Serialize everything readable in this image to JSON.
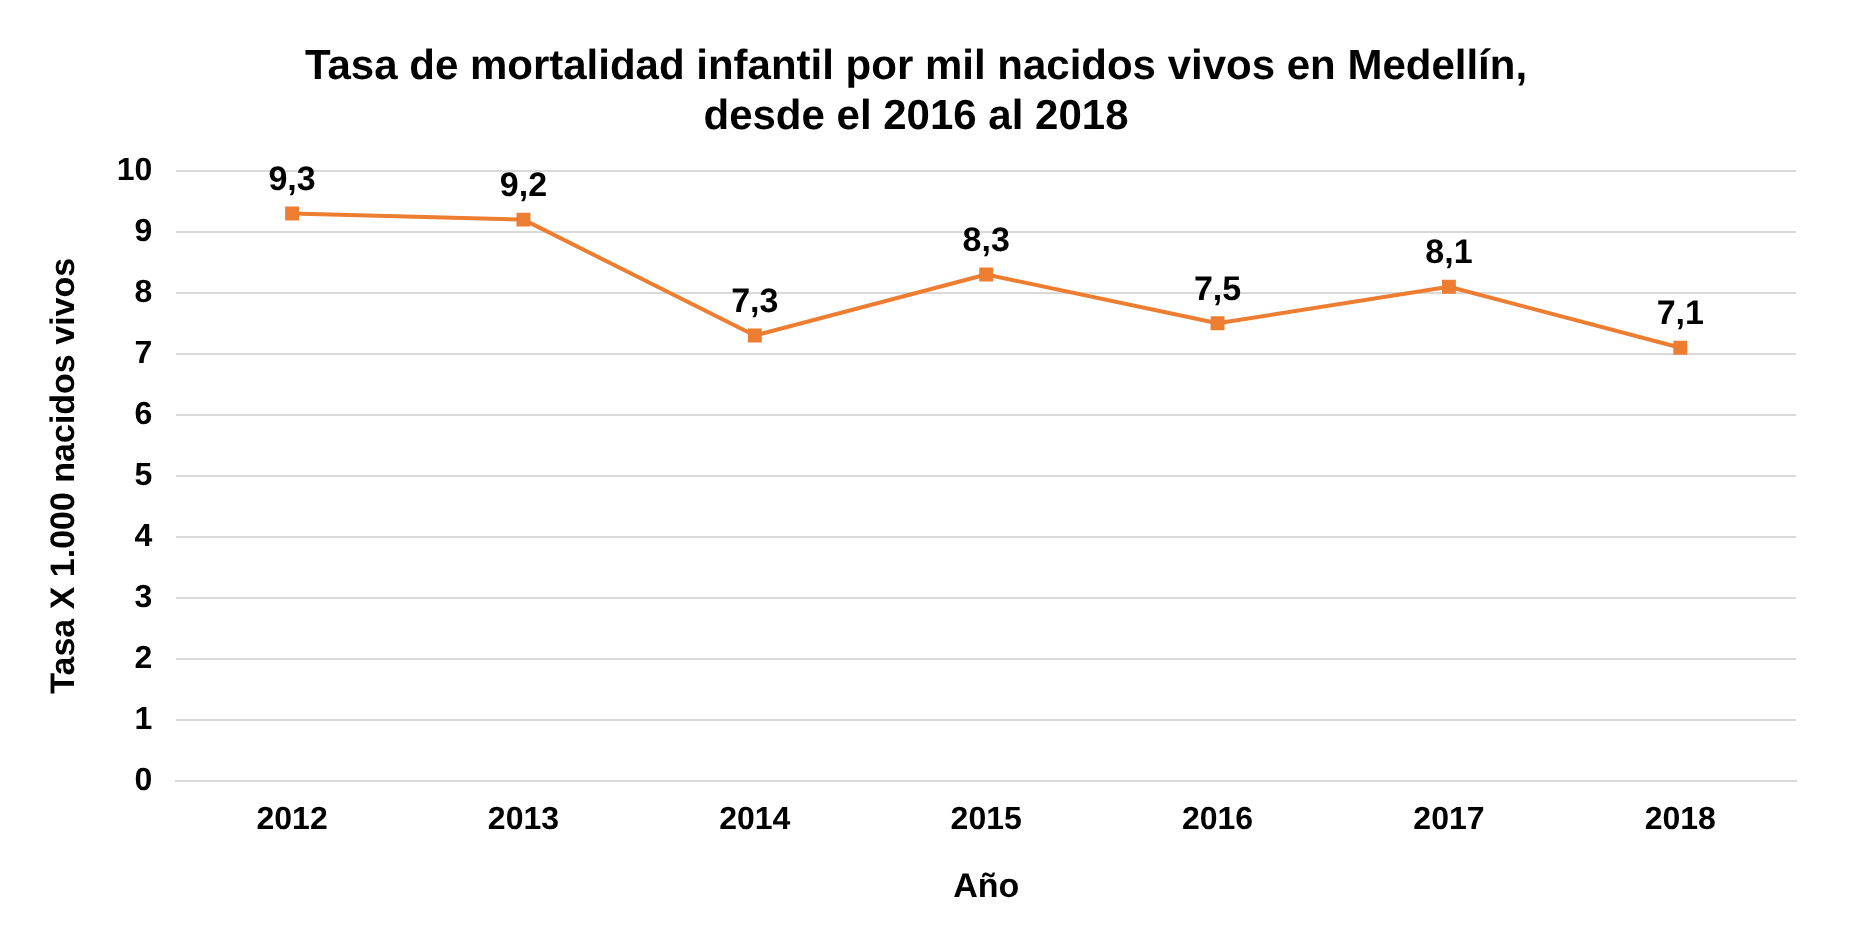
{
  "chart_data": {
    "type": "line",
    "title": "Tasa de mortalidad infantil por mil nacidos vivos en Medellín, desde el 2016 al 2018",
    "xlabel": "Año",
    "ylabel": "Tasa X 1.000 nacidos vivos",
    "categories": [
      "2012",
      "2013",
      "2014",
      "2015",
      "2016",
      "2017",
      "2018"
    ],
    "series": [
      {
        "color": "#ed7d31",
        "values": [
          9.3,
          9.2,
          7.3,
          8.3,
          7.5,
          8.1,
          7.1
        ],
        "value_labels": [
          "9,3",
          "9,2",
          "7,3",
          "8,3",
          "7,5",
          "8,1",
          "7,1"
        ]
      }
    ],
    "ylim": [
      0,
      10
    ],
    "yticks": [
      0,
      1,
      2,
      3,
      4,
      5,
      6,
      7,
      8,
      9,
      10
    ],
    "grid": "y",
    "legend": false,
    "marker": "square",
    "line_style": "solid"
  }
}
